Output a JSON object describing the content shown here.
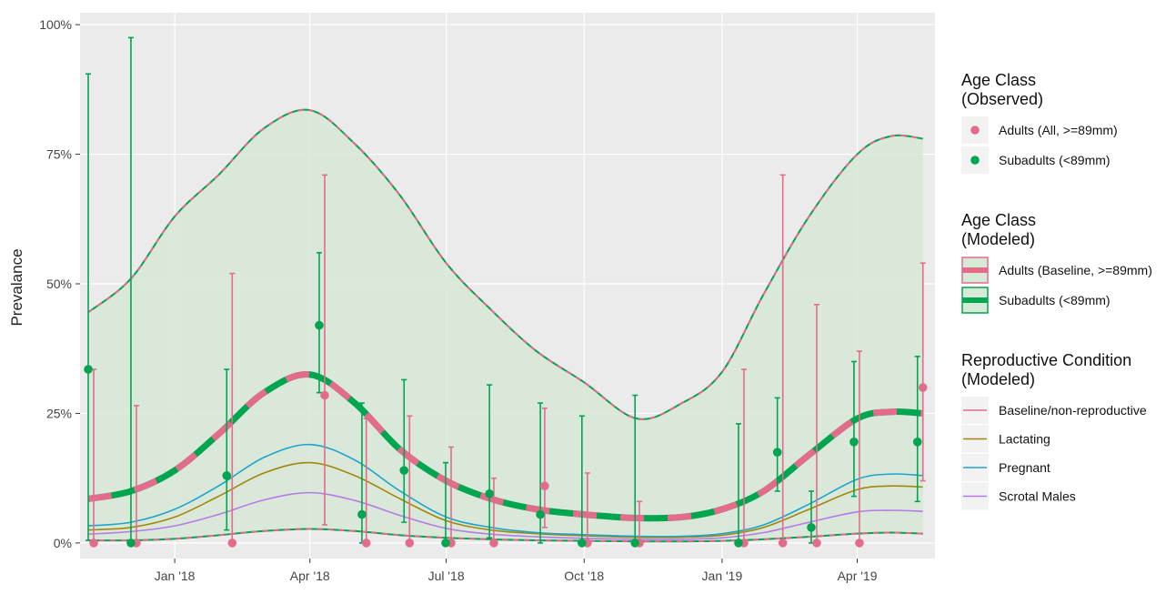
{
  "chart_data": {
    "type": "line",
    "y_label": "Prevalance",
    "xlim": [
      2017.827,
      2019.389
    ],
    "ylim": [
      -3,
      102.3
    ],
    "xticks": [
      {
        "value": 2018,
        "label": "Jan '18"
      },
      {
        "value": 2018.247,
        "label": "Apr '18"
      },
      {
        "value": 2018.496,
        "label": "Jul '18"
      },
      {
        "value": 2018.748,
        "label": "Oct '18"
      },
      {
        "value": 2019,
        "label": "Jan '19"
      },
      {
        "value": 2019.247,
        "label": "Apr '19"
      }
    ],
    "yticks": [
      {
        "value": 0,
        "label": "0%"
      },
      {
        "value": 25,
        "label": "25%"
      },
      {
        "value": 50,
        "label": "50%"
      },
      {
        "value": 75,
        "label": "75%"
      },
      {
        "value": 100,
        "label": "100%"
      }
    ],
    "grid": true,
    "observed": {
      "title": [
        "Age Class",
        "(Observed)"
      ],
      "series": [
        {
          "name": "Adults (All, >=89mm)",
          "color": "#e36c8b",
          "x": [
            2017.852,
            2017.93,
            2018.105,
            2018.274,
            2018.35,
            2018.429,
            2018.505,
            2018.583,
            2018.676,
            2018.754,
            2018.849,
            2019.04,
            2019.111,
            2019.173,
            2019.251,
            2019.367
          ],
          "values": [
            0,
            0,
            0,
            28.5,
            0,
            0,
            0,
            0,
            11,
            0,
            0,
            0,
            0,
            0,
            0,
            30
          ],
          "lower": [
            0,
            0,
            0,
            3.5,
            0,
            0,
            0,
            0,
            3,
            0,
            0,
            0,
            0,
            0,
            0,
            12
          ],
          "upper": [
            33.5,
            26.5,
            52,
            71,
            24,
            24.5,
            18.5,
            12.5,
            26,
            13.5,
            8,
            33.5,
            71,
            46,
            37,
            54
          ]
        },
        {
          "name": "Subadults (<89mm)",
          "color": "#00a550",
          "x": [
            2017.842,
            2017.92,
            2018.095,
            2018.264,
            2018.342,
            2018.419,
            2018.495,
            2018.575,
            2018.668,
            2018.744,
            2018.841,
            2019.03,
            2019.101,
            2019.163,
            2019.241,
            2019.357
          ],
          "values": [
            33.5,
            0,
            13,
            42,
            5.5,
            14,
            0,
            9.5,
            5.5,
            0,
            0,
            0,
            17.5,
            3,
            19.5,
            19.5
          ],
          "lower": [
            0.5,
            0,
            2.5,
            29,
            0,
            4,
            0,
            1,
            0,
            0,
            0,
            0,
            10,
            0,
            9,
            8
          ],
          "upper": [
            90.5,
            97.5,
            33.5,
            56,
            27,
            31.5,
            15.5,
            30.5,
            27,
            24.5,
            28.5,
            23,
            28,
            10,
            35,
            36
          ]
        }
      ]
    },
    "model_x": [
      2017.842,
      2017.92,
      2018.0,
      2018.08,
      2018.163,
      2018.247,
      2018.329,
      2018.412,
      2018.496,
      2018.578,
      2018.661,
      2018.748,
      2018.844,
      2018.927,
      2019.0,
      2019.076,
      2019.159,
      2019.247,
      2019.309,
      2019.367
    ],
    "modeled": {
      "title": [
        "Age Class",
        "(Modeled)"
      ],
      "band": {
        "color": "#d6e8d6",
        "lower": [
          0.5,
          0.5,
          0.8,
          1.5,
          2.3,
          2.7,
          2.3,
          1.5,
          1,
          0.7,
          0.5,
          0.4,
          0.3,
          0.3,
          0.4,
          0.7,
          1.2,
          1.8,
          2,
          1.8
        ],
        "upper": [
          44.5,
          51,
          63,
          71,
          80,
          83.5,
          77,
          67,
          54,
          45,
          37,
          31,
          24,
          27,
          33,
          48,
          63,
          75,
          78.5,
          78
        ]
      },
      "series": [
        {
          "name": "Adults (Baseline, >=89mm)",
          "color": "#e36c8b",
          "values": [
            8.5,
            10,
            14,
            21,
            29,
            32.5,
            27,
            18,
            12,
            8.5,
            6.5,
            5.5,
            4.8,
            5,
            6.5,
            10,
            17,
            24,
            25.3,
            25
          ]
        },
        {
          "name": "Subadults (<89mm)",
          "color": "#00a550",
          "values": [
            8.5,
            10,
            14,
            21,
            29,
            32.5,
            27,
            18,
            12,
            8.5,
            6.5,
            5.5,
            4.8,
            5,
            6.5,
            10,
            17,
            24,
            25.3,
            25
          ]
        }
      ]
    },
    "reproductive": {
      "title": [
        "Reproductive Condition",
        "(Modeled)"
      ],
      "series": [
        {
          "name": "Baseline/non-reproductive",
          "color": "#e36c8b",
          "values": [
            8.5,
            10,
            14,
            21,
            29,
            32.5,
            27,
            18,
            12,
            8.5,
            6.5,
            5.5,
            4.8,
            5,
            6.5,
            10,
            17,
            24,
            25.3,
            25
          ]
        },
        {
          "name": "Lactating",
          "color": "#a3870b",
          "values": [
            2.5,
            3,
            5,
            9,
            13.5,
            15.5,
            13,
            8.5,
            4.3,
            2.5,
            1.8,
            1.4,
            1.1,
            1.1,
            1.5,
            3,
            6.5,
            10.3,
            11,
            10.8
          ]
        },
        {
          "name": "Pregnant",
          "color": "#1ea4c9",
          "values": [
            3.3,
            4,
            6.5,
            11,
            16.5,
            19,
            16,
            10,
            5,
            3,
            2,
            1.6,
            1.3,
            1.3,
            1.8,
            3.5,
            7.5,
            12.3,
            13.3,
            13
          ]
        },
        {
          "name": "Scrotal Males",
          "color": "#b67be6",
          "values": [
            1.7,
            2.2,
            3.3,
            5.5,
            8.3,
            9.7,
            8.2,
            5.3,
            2.8,
            1.7,
            1.2,
            0.9,
            0.7,
            0.7,
            1,
            2,
            4,
            6,
            6.3,
            6.1
          ]
        }
      ]
    }
  }
}
